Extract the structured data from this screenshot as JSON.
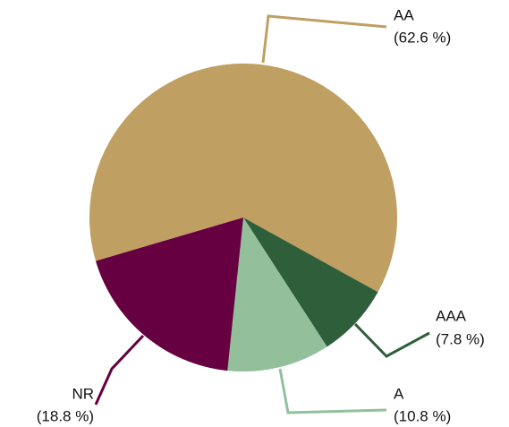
{
  "chart_data": {
    "type": "pie",
    "categories": [
      "AA",
      "AAA",
      "A",
      "NR"
    ],
    "values": [
      62.6,
      7.8,
      10.8,
      18.8
    ],
    "value_labels": [
      "(62.6 %)",
      "(7.8 %)",
      "(10.8 %)",
      "(18.8 %)"
    ],
    "colors": [
      "#bf9f62",
      "#2f5e3b",
      "#93c09b",
      "#660040"
    ]
  }
}
